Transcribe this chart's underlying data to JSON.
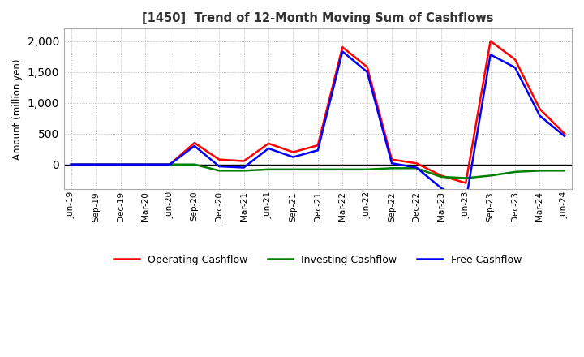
{
  "title": "[1450]  Trend of 12-Month Moving Sum of Cashflows",
  "ylabel": "Amount (million yen)",
  "ylim": [
    -400,
    2200
  ],
  "yticks": [
    0,
    500,
    1000,
    1500,
    2000
  ],
  "background_color": "#ffffff",
  "grid_color": "#aaaaaa",
  "x_labels": [
    "Jun-19",
    "Sep-19",
    "Dec-19",
    "Mar-20",
    "Jun-20",
    "Sep-20",
    "Dec-20",
    "Mar-21",
    "Jun-21",
    "Sep-21",
    "Dec-21",
    "Mar-22",
    "Jun-22",
    "Sep-22",
    "Dec-22",
    "Mar-23",
    "Jun-23",
    "Sep-23",
    "Dec-23",
    "Mar-24",
    "Jun-24"
  ],
  "operating": [
    0,
    0,
    0,
    0,
    0,
    350,
    80,
    55,
    340,
    200,
    310,
    1900,
    1580,
    80,
    20,
    -180,
    -300,
    2000,
    1700,
    900,
    500
  ],
  "investing": [
    0,
    0,
    0,
    0,
    0,
    0,
    -100,
    -100,
    -80,
    -80,
    -80,
    -80,
    -80,
    -60,
    -60,
    -200,
    -220,
    -180,
    -120,
    -100,
    -100
  ],
  "free": [
    0,
    0,
    0,
    0,
    0,
    300,
    -30,
    -50,
    260,
    120,
    230,
    1830,
    1500,
    20,
    -50,
    -380,
    -600,
    1780,
    1570,
    790,
    460
  ],
  "op_color": "#ff0000",
  "inv_color": "#008000",
  "free_color": "#0000ff",
  "line_width": 1.8
}
